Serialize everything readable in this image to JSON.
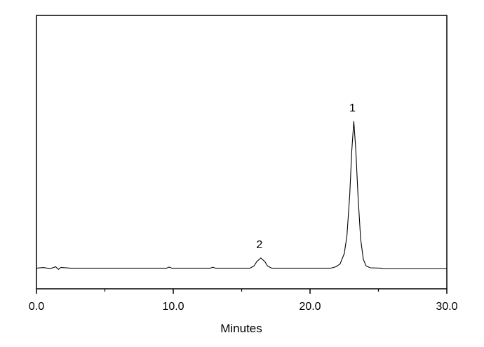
{
  "chart_data": {
    "type": "line",
    "title": "",
    "xlabel": "Minutes",
    "ylabel": "",
    "xlim": [
      0,
      30
    ],
    "ylim": [
      -0.14,
      1.72
    ],
    "xticks_major": [
      0,
      10,
      20,
      30
    ],
    "xtick_labels": [
      "0.0",
      "10.0",
      "20.0",
      "30.0"
    ],
    "xticks_minor": [
      5,
      15,
      25
    ],
    "yticks_shown": false,
    "grid": false,
    "line_color": "#000000",
    "series": [
      {
        "x": [
          0,
          0.5,
          1.0,
          1.4,
          1.6,
          1.8,
          2.5,
          5,
          9.5,
          9.7,
          9.9,
          12.7,
          12.9,
          13.1,
          15.6,
          15.9,
          16.1,
          16.4,
          16.7,
          16.9,
          17.2,
          21.5,
          21.9,
          22.2,
          22.5,
          22.7,
          22.9,
          23.05,
          23.2,
          23.35,
          23.5,
          23.7,
          23.9,
          24.1,
          24.4,
          25.2,
          25.3,
          30
        ],
        "y": [
          0,
          0.005,
          -0.003,
          0.01,
          -0.008,
          0.006,
          0,
          0,
          0,
          0.008,
          0,
          0,
          0.007,
          0,
          0,
          0.015,
          0.045,
          0.07,
          0.045,
          0.015,
          0,
          0,
          0.01,
          0.03,
          0.1,
          0.22,
          0.5,
          0.8,
          1.0,
          0.8,
          0.5,
          0.2,
          0.06,
          0.015,
          0.003,
          0,
          -0.004,
          -0.004
        ]
      }
    ],
    "annotations": [
      {
        "text": "1",
        "x": 23.2,
        "y": 1.0
      },
      {
        "text": "2",
        "x": 16.4,
        "y": 0.07
      }
    ]
  }
}
